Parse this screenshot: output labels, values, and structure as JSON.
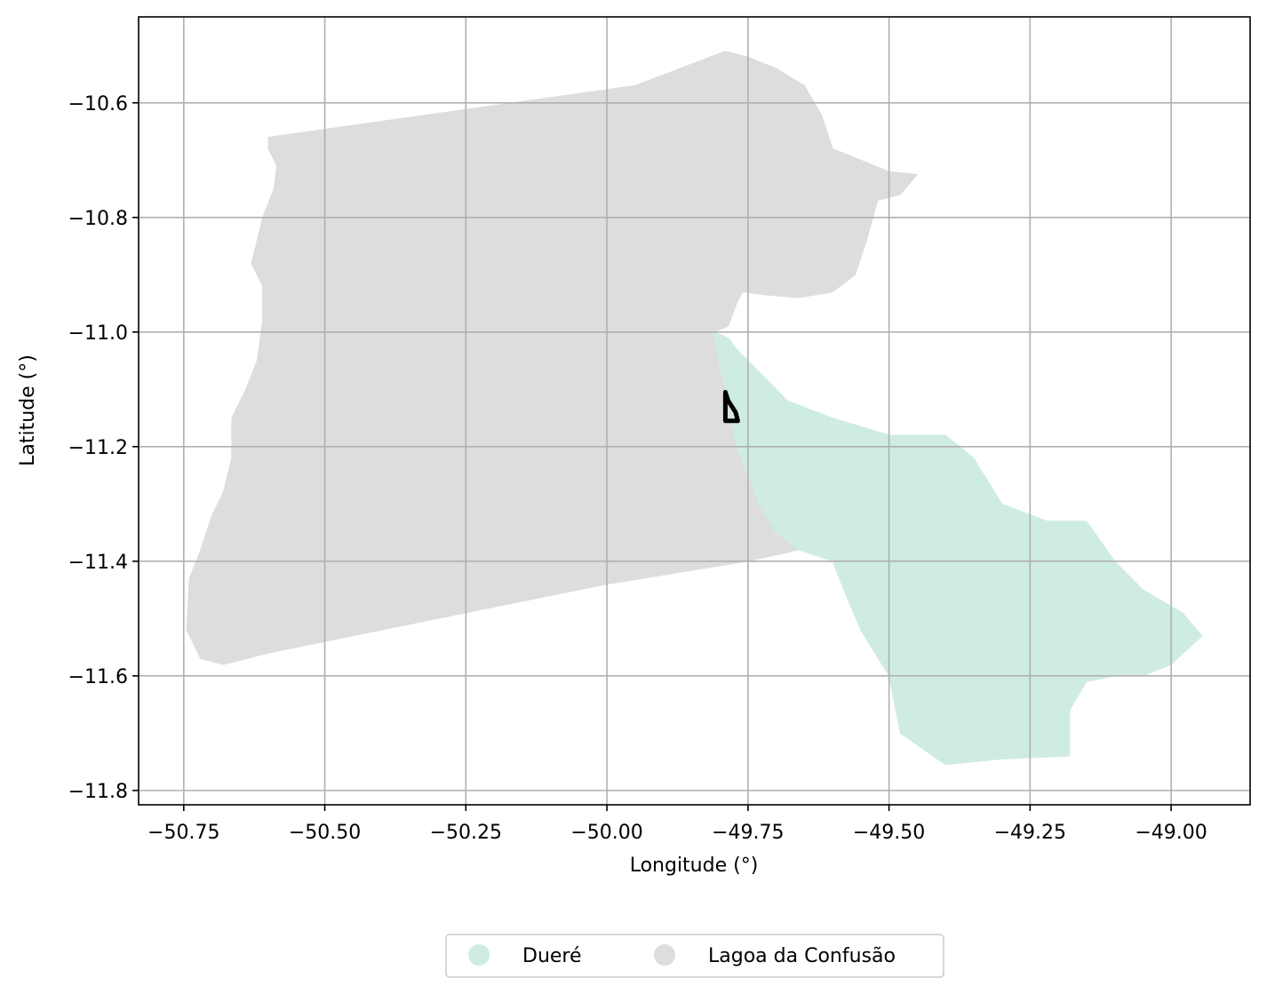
{
  "chart_data": {
    "type": "map",
    "xlabel": "Longitude (°)",
    "ylabel": "Latitude (°)",
    "xlim": [
      -50.83,
      -48.86
    ],
    "ylim": [
      -11.825,
      -10.45
    ],
    "x_ticks": [
      -50.75,
      -50.5,
      -50.25,
      -50.0,
      -49.75,
      -49.5,
      -49.25,
      -49.0
    ],
    "x_tick_labels": [
      "−50.75",
      "−50.50",
      "−50.25",
      "−50.00",
      "−49.75",
      "−49.50",
      "−49.25",
      "−49.00"
    ],
    "y_ticks": [
      -10.6,
      -10.8,
      -11.0,
      -11.2,
      -11.4,
      -11.6,
      -11.8
    ],
    "y_tick_labels": [
      "−10.6",
      "−10.8",
      "−11.0",
      "−11.2",
      "−11.4",
      "−11.6",
      "−11.8"
    ],
    "grid": true,
    "legend_placement": "bottom-center",
    "series": [
      {
        "name": "Dueré",
        "color": "#cfece0",
        "polygon": [
          [
            -49.81,
            -11.0
          ],
          [
            -49.785,
            -11.01
          ],
          [
            -49.77,
            -11.03
          ],
          [
            -49.75,
            -11.05
          ],
          [
            -49.72,
            -11.08
          ],
          [
            -49.68,
            -11.12
          ],
          [
            -49.6,
            -11.15
          ],
          [
            -49.5,
            -11.18
          ],
          [
            -49.4,
            -11.18
          ],
          [
            -49.35,
            -11.22
          ],
          [
            -49.3,
            -11.3
          ],
          [
            -49.22,
            -11.33
          ],
          [
            -49.15,
            -11.33
          ],
          [
            -49.1,
            -11.4
          ],
          [
            -49.05,
            -11.45
          ],
          [
            -48.98,
            -11.49
          ],
          [
            -48.945,
            -11.53
          ],
          [
            -49.0,
            -11.58
          ],
          [
            -49.05,
            -11.6
          ],
          [
            -49.1,
            -11.6
          ],
          [
            -49.15,
            -11.61
          ],
          [
            -49.18,
            -11.66
          ],
          [
            -49.18,
            -11.74
          ],
          [
            -49.3,
            -11.745
          ],
          [
            -49.4,
            -11.755
          ],
          [
            -49.48,
            -11.7
          ],
          [
            -49.5,
            -11.6
          ],
          [
            -49.55,
            -11.52
          ],
          [
            -49.58,
            -11.45
          ],
          [
            -49.6,
            -11.4
          ],
          [
            -49.66,
            -11.38
          ],
          [
            -49.7,
            -11.35
          ],
          [
            -49.73,
            -11.3
          ],
          [
            -49.75,
            -11.25
          ],
          [
            -49.77,
            -11.2
          ],
          [
            -49.79,
            -11.1
          ],
          [
            -49.8,
            -11.06
          ]
        ]
      },
      {
        "name": "Lagoa da Confusão",
        "color": "#dddddd",
        "polygon": [
          [
            -50.6,
            -10.66
          ],
          [
            -49.95,
            -10.57
          ],
          [
            -49.79,
            -10.51
          ],
          [
            -49.75,
            -10.52
          ],
          [
            -49.7,
            -10.54
          ],
          [
            -49.65,
            -10.57
          ],
          [
            -49.62,
            -10.62
          ],
          [
            -49.6,
            -10.68
          ],
          [
            -49.55,
            -10.7
          ],
          [
            -49.5,
            -10.72
          ],
          [
            -49.45,
            -10.725
          ],
          [
            -49.48,
            -10.76
          ],
          [
            -49.52,
            -10.77
          ],
          [
            -49.54,
            -10.84
          ],
          [
            -49.56,
            -10.9
          ],
          [
            -49.6,
            -10.93
          ],
          [
            -49.66,
            -10.94
          ],
          [
            -49.72,
            -10.935
          ],
          [
            -49.76,
            -10.93
          ],
          [
            -49.77,
            -10.95
          ],
          [
            -49.785,
            -10.99
          ],
          [
            -49.81,
            -11.0
          ],
          [
            -49.8,
            -11.06
          ],
          [
            -49.79,
            -11.1
          ],
          [
            -49.77,
            -11.2
          ],
          [
            -49.75,
            -11.25
          ],
          [
            -49.73,
            -11.3
          ],
          [
            -49.7,
            -11.35
          ],
          [
            -49.66,
            -11.38
          ],
          [
            -49.75,
            -11.4
          ],
          [
            -50.0,
            -11.44
          ],
          [
            -50.3,
            -11.5
          ],
          [
            -50.6,
            -11.56
          ],
          [
            -50.68,
            -11.58
          ],
          [
            -50.72,
            -11.57
          ],
          [
            -50.745,
            -11.52
          ],
          [
            -50.74,
            -11.43
          ],
          [
            -50.72,
            -11.38
          ],
          [
            -50.7,
            -11.32
          ],
          [
            -50.68,
            -11.28
          ],
          [
            -50.665,
            -11.22
          ],
          [
            -50.665,
            -11.15
          ],
          [
            -50.64,
            -11.1
          ],
          [
            -50.62,
            -11.05
          ],
          [
            -50.61,
            -10.98
          ],
          [
            -50.61,
            -10.92
          ],
          [
            -50.63,
            -10.88
          ],
          [
            -50.62,
            -10.84
          ],
          [
            -50.61,
            -10.8
          ],
          [
            -50.59,
            -10.75
          ],
          [
            -50.585,
            -10.71
          ],
          [
            -50.6,
            -10.68
          ]
        ]
      }
    ],
    "outline": {
      "color": "#000000",
      "polygon": [
        [
          -49.79,
          -11.105
        ],
        [
          -49.785,
          -11.12
        ],
        [
          -49.772,
          -11.14
        ],
        [
          -49.768,
          -11.155
        ],
        [
          -49.79,
          -11.155
        ],
        [
          -49.79,
          -11.12
        ]
      ]
    }
  },
  "legend": {
    "items": [
      {
        "label": "Dueré",
        "color": "#cfece0"
      },
      {
        "label": "Lagoa da Confusão",
        "color": "#dddddd"
      }
    ]
  }
}
